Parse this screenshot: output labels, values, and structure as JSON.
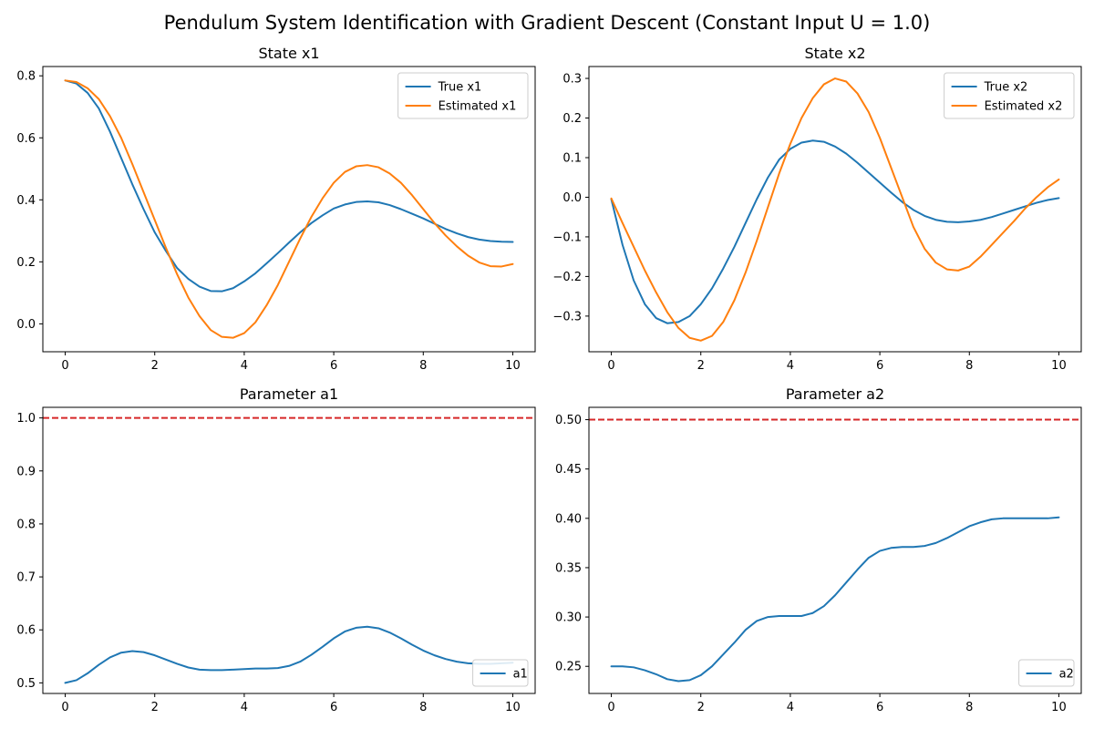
{
  "figure": {
    "suptitle": "Pendulum System Identification with Gradient Descent (Constant Input U = 1.0)"
  },
  "colors": {
    "blue": "#1f77b4",
    "orange": "#ff7f0e",
    "red": "#d62728"
  },
  "chart_data": [
    {
      "id": "x1",
      "type": "line",
      "title": "State x1",
      "xlim": [
        -0.5,
        10.5
      ],
      "ylim": [
        -0.09,
        0.83
      ],
      "xticks": [
        0,
        2,
        4,
        6,
        8,
        10
      ],
      "xtick_labels": [
        "0",
        "2",
        "4",
        "6",
        "8",
        "10"
      ],
      "yticks": [
        0.0,
        0.2,
        0.4,
        0.6,
        0.8
      ],
      "ytick_labels": [
        "0.0",
        "0.2",
        "0.4",
        "0.6",
        "0.8"
      ],
      "legend": "top-right",
      "grid": false,
      "series": [
        {
          "name": "True x1",
          "color": "#1f77b4",
          "x": [
            0,
            0.25,
            0.5,
            0.75,
            1,
            1.25,
            1.5,
            1.75,
            2,
            2.25,
            2.5,
            2.75,
            3,
            3.25,
            3.5,
            3.75,
            4,
            4.25,
            4.5,
            4.75,
            5,
            5.25,
            5.5,
            5.75,
            6,
            6.25,
            6.5,
            6.75,
            7,
            7.25,
            7.5,
            7.75,
            8,
            8.25,
            8.5,
            8.75,
            9,
            9.25,
            9.5,
            9.75,
            10
          ],
          "y": [
            0.785,
            0.775,
            0.745,
            0.695,
            0.62,
            0.535,
            0.45,
            0.37,
            0.295,
            0.235,
            0.18,
            0.145,
            0.12,
            0.106,
            0.105,
            0.115,
            0.137,
            0.163,
            0.195,
            0.228,
            0.262,
            0.295,
            0.325,
            0.35,
            0.372,
            0.385,
            0.393,
            0.395,
            0.392,
            0.383,
            0.37,
            0.355,
            0.34,
            0.323,
            0.306,
            0.292,
            0.28,
            0.272,
            0.267,
            0.265,
            0.264
          ]
        },
        {
          "name": "Estimated x1",
          "color": "#ff7f0e",
          "x": [
            0,
            0.25,
            0.5,
            0.75,
            1,
            1.25,
            1.5,
            1.75,
            2,
            2.25,
            2.5,
            2.75,
            3,
            3.25,
            3.5,
            3.75,
            4,
            4.25,
            4.5,
            4.75,
            5,
            5.25,
            5.5,
            5.75,
            6,
            6.25,
            6.5,
            6.75,
            7,
            7.25,
            7.5,
            7.75,
            8,
            8.25,
            8.5,
            8.75,
            9,
            9.25,
            9.5,
            9.75,
            10
          ],
          "y": [
            0.785,
            0.78,
            0.76,
            0.725,
            0.67,
            0.6,
            0.515,
            0.425,
            0.335,
            0.245,
            0.16,
            0.085,
            0.025,
            -0.02,
            -0.042,
            -0.045,
            -0.03,
            0.005,
            0.06,
            0.125,
            0.2,
            0.275,
            0.345,
            0.405,
            0.455,
            0.49,
            0.508,
            0.512,
            0.505,
            0.485,
            0.455,
            0.415,
            0.37,
            0.325,
            0.285,
            0.25,
            0.22,
            0.198,
            0.186,
            0.185,
            0.193
          ]
        }
      ]
    },
    {
      "id": "x2",
      "type": "line",
      "title": "State x2",
      "xlim": [
        -0.5,
        10.5
      ],
      "ylim": [
        -0.39,
        0.33
      ],
      "xticks": [
        0,
        2,
        4,
        6,
        8,
        10
      ],
      "xtick_labels": [
        "0",
        "2",
        "4",
        "6",
        "8",
        "10"
      ],
      "yticks": [
        -0.3,
        -0.2,
        -0.1,
        0.0,
        0.1,
        0.2,
        0.3
      ],
      "ytick_labels": [
        "−0.3",
        "−0.2",
        "−0.1",
        "0.0",
        "0.1",
        "0.2",
        "0.3"
      ],
      "legend": "top-right",
      "grid": false,
      "series": [
        {
          "name": "True x2",
          "color": "#1f77b4",
          "x": [
            0,
            0.25,
            0.5,
            0.75,
            1,
            1.25,
            1.5,
            1.75,
            2,
            2.25,
            2.5,
            2.75,
            3,
            3.25,
            3.5,
            3.75,
            4,
            4.25,
            4.5,
            4.75,
            5,
            5.25,
            5.5,
            5.75,
            6,
            6.25,
            6.5,
            6.75,
            7,
            7.25,
            7.5,
            7.75,
            8,
            8.25,
            8.5,
            8.75,
            9,
            9.25,
            9.5,
            9.75,
            10
          ],
          "y": [
            -0.005,
            -0.12,
            -0.21,
            -0.27,
            -0.305,
            -0.318,
            -0.315,
            -0.3,
            -0.27,
            -0.23,
            -0.18,
            -0.125,
            -0.065,
            -0.005,
            0.05,
            0.095,
            0.122,
            0.138,
            0.143,
            0.14,
            0.128,
            0.11,
            0.087,
            0.062,
            0.037,
            0.012,
            -0.012,
            -0.032,
            -0.047,
            -0.057,
            -0.062,
            -0.063,
            -0.061,
            -0.057,
            -0.05,
            -0.041,
            -0.032,
            -0.023,
            -0.014,
            -0.007,
            -0.002
          ]
        },
        {
          "name": "Estimated x2",
          "color": "#ff7f0e",
          "x": [
            0,
            0.25,
            0.5,
            0.75,
            1,
            1.25,
            1.5,
            1.75,
            2,
            2.25,
            2.5,
            2.75,
            3,
            3.25,
            3.5,
            3.75,
            4,
            4.25,
            4.5,
            4.75,
            5,
            5.25,
            5.5,
            5.75,
            6,
            6.25,
            6.5,
            6.75,
            7,
            7.25,
            7.5,
            7.75,
            8,
            8.25,
            8.5,
            8.75,
            9,
            9.25,
            9.5,
            9.75,
            10
          ],
          "y": [
            -0.003,
            -0.065,
            -0.125,
            -0.185,
            -0.24,
            -0.29,
            -0.33,
            -0.355,
            -0.362,
            -0.35,
            -0.315,
            -0.26,
            -0.19,
            -0.11,
            -0.025,
            0.06,
            0.135,
            0.2,
            0.25,
            0.285,
            0.3,
            0.292,
            0.262,
            0.215,
            0.15,
            0.075,
            0.0,
            -0.075,
            -0.13,
            -0.165,
            -0.182,
            -0.185,
            -0.175,
            -0.15,
            -0.12,
            -0.09,
            -0.06,
            -0.028,
            0.0,
            0.025,
            0.045
          ]
        }
      ]
    },
    {
      "id": "a1",
      "type": "line",
      "title": "Parameter a1",
      "xlim": [
        -0.5,
        10.5
      ],
      "ylim": [
        0.48,
        1.02
      ],
      "xticks": [
        0,
        2,
        4,
        6,
        8,
        10
      ],
      "xtick_labels": [
        "0",
        "2",
        "4",
        "6",
        "8",
        "10"
      ],
      "yticks": [
        0.5,
        0.6,
        0.7,
        0.8,
        0.9,
        1.0
      ],
      "ytick_labels": [
        "0.5",
        "0.6",
        "0.7",
        "0.8",
        "0.9",
        "1.0"
      ],
      "legend": "bottom-right",
      "grid": false,
      "reference_line": {
        "y": 1.0,
        "style": "dashed",
        "color": "#d62728"
      },
      "series": [
        {
          "name": "a1",
          "color": "#1f77b4",
          "x": [
            0,
            0.25,
            0.5,
            0.75,
            1,
            1.25,
            1.5,
            1.75,
            2,
            2.25,
            2.5,
            2.75,
            3,
            3.25,
            3.5,
            3.75,
            4,
            4.25,
            4.5,
            4.75,
            5,
            5.25,
            5.5,
            5.75,
            6,
            6.25,
            6.5,
            6.75,
            7,
            7.25,
            7.5,
            7.75,
            8,
            8.25,
            8.5,
            8.75,
            9,
            9.25,
            9.5,
            9.75,
            10
          ],
          "y": [
            0.5,
            0.505,
            0.518,
            0.534,
            0.548,
            0.557,
            0.56,
            0.558,
            0.552,
            0.544,
            0.536,
            0.529,
            0.525,
            0.524,
            0.524,
            0.525,
            0.526,
            0.527,
            0.527,
            0.528,
            0.532,
            0.54,
            0.553,
            0.568,
            0.584,
            0.597,
            0.604,
            0.606,
            0.603,
            0.595,
            0.584,
            0.572,
            0.561,
            0.552,
            0.545,
            0.54,
            0.537,
            0.536,
            0.536,
            0.537,
            0.538
          ]
        }
      ]
    },
    {
      "id": "a2",
      "type": "line",
      "title": "Parameter a2",
      "xlim": [
        -0.5,
        10.5
      ],
      "ylim": [
        0.2225,
        0.5125
      ],
      "xticks": [
        0,
        2,
        4,
        6,
        8,
        10
      ],
      "xtick_labels": [
        "0",
        "2",
        "4",
        "6",
        "8",
        "10"
      ],
      "yticks": [
        0.25,
        0.3,
        0.35,
        0.4,
        0.45,
        0.5
      ],
      "ytick_labels": [
        "0.25",
        "0.30",
        "0.35",
        "0.40",
        "0.45",
        "0.50"
      ],
      "legend": "bottom-right",
      "grid": false,
      "reference_line": {
        "y": 0.5,
        "style": "dashed",
        "color": "#d62728"
      },
      "series": [
        {
          "name": "a2",
          "color": "#1f77b4",
          "x": [
            0,
            0.25,
            0.5,
            0.75,
            1,
            1.25,
            1.5,
            1.75,
            2,
            2.25,
            2.5,
            2.75,
            3,
            3.25,
            3.5,
            3.75,
            4,
            4.25,
            4.5,
            4.75,
            5,
            5.25,
            5.5,
            5.75,
            6,
            6.25,
            6.5,
            6.75,
            7,
            7.25,
            7.5,
            7.75,
            8,
            8.25,
            8.5,
            8.75,
            9,
            9.25,
            9.5,
            9.75,
            10
          ],
          "y": [
            0.25,
            0.25,
            0.249,
            0.246,
            0.242,
            0.237,
            0.235,
            0.236,
            0.241,
            0.25,
            0.262,
            0.274,
            0.287,
            0.296,
            0.3,
            0.301,
            0.301,
            0.301,
            0.304,
            0.311,
            0.322,
            0.335,
            0.348,
            0.36,
            0.367,
            0.37,
            0.371,
            0.371,
            0.372,
            0.375,
            0.38,
            0.386,
            0.392,
            0.396,
            0.399,
            0.4,
            0.4,
            0.4,
            0.4,
            0.4,
            0.401
          ]
        }
      ]
    }
  ]
}
